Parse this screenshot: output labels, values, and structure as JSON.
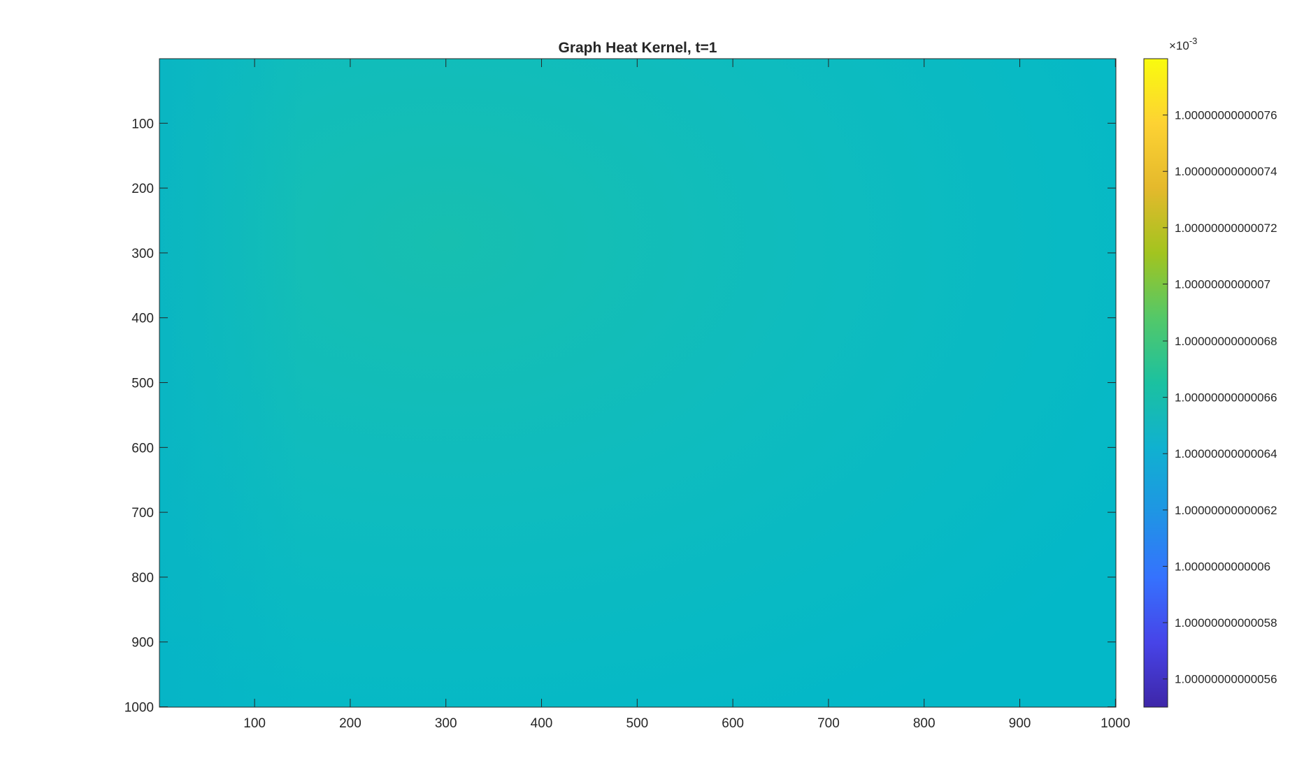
{
  "chart_data": {
    "type": "heatmap",
    "title": "Graph Heat Kernel, t=1",
    "xlabel": "",
    "ylabel": "",
    "xlim": [
      0.5,
      1000.5
    ],
    "ylim": [
      0.5,
      1000.5
    ],
    "y_direction": "reversed",
    "x_ticks": [
      100,
      200,
      300,
      400,
      500,
      600,
      700,
      800,
      900,
      1000
    ],
    "y_ticks": [
      100,
      200,
      300,
      400,
      500,
      600,
      700,
      800,
      900,
      1000
    ],
    "colormap": "parula",
    "colorbar": {
      "exponent_label": "×10",
      "exponent_value": "-3",
      "scale_factor": 0.001,
      "clim": [
        1.00000000000055,
        1.00000000000078
      ],
      "ticks": [
        1.00000000000056,
        1.00000000000058,
        1.0000000000006,
        1.00000000000062,
        1.00000000000064,
        1.00000000000066,
        1.00000000000068,
        1.0000000000007,
        1.00000000000072,
        1.00000000000074,
        1.00000000000076
      ],
      "tick_labels": [
        "1.00000000000056",
        "1.00000000000058",
        "1.0000000000006",
        "1.00000000000062",
        "1.00000000000064",
        "1.00000000000066",
        "1.00000000000068",
        "1.0000000000007",
        "1.00000000000072",
        "1.00000000000074",
        "1.00000000000076"
      ]
    },
    "field_estimate": {
      "description_of_values": "values in colorbar units (x10^-3)",
      "base_value": 1.000000000000665,
      "peak_value": 1.000000000000673,
      "peak_at": [
        300,
        280
      ],
      "min_value": 1.000000000000661
    },
    "colors": {
      "parula_stops": [
        "#3e26a8",
        "#4744e8",
        "#3572fe",
        "#1f95e4",
        "#10b1d0",
        "#1bc1a0",
        "#53c869",
        "#a2c41f",
        "#e4b92c",
        "#fdd233",
        "#f9fb0e"
      ]
    }
  }
}
